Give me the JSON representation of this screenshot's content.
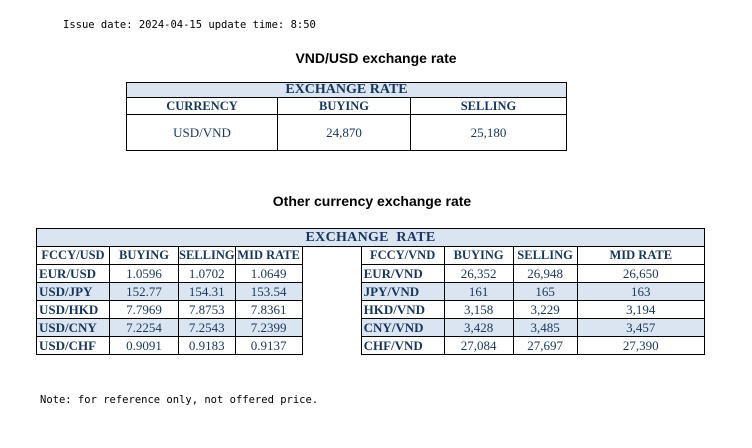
{
  "issue_line": "Issue date: 2024-04-15 update time: 8:50",
  "main_title": "VND/USD exchange rate",
  "vnd_table": {
    "title": "EXCHANGE RATE",
    "headers": [
      "CURRENCY",
      "BUYING",
      "SELLING"
    ],
    "row": {
      "currency": "USD/VND",
      "buying": "24,870",
      "selling": "25,180"
    }
  },
  "other_title": "Other currency exchange rate",
  "other_table": {
    "title": "EXCHANGE  RATE",
    "left_headers": [
      "FCCY/USD",
      "BUYING",
      "SELLING",
      "MID RATE"
    ],
    "right_headers": [
      "FCCY/VND",
      "BUYING",
      "SELLING",
      "MID RATE"
    ],
    "rows": [
      {
        "l_pair": "EUR/USD",
        "l_buy": "1.0596",
        "l_sell": "1.0702",
        "l_mid": "1.0649",
        "r_pair": "EUR/VND",
        "r_buy": "26,352",
        "r_sell": "26,948",
        "r_mid": "26,650"
      },
      {
        "l_pair": "USD/JPY",
        "l_buy": "152.77",
        "l_sell": "154.31",
        "l_mid": "153.54",
        "r_pair": "JPY/VND",
        "r_buy": "161",
        "r_sell": "165",
        "r_mid": "163"
      },
      {
        "l_pair": "USD/HKD",
        "l_buy": "7.7969",
        "l_sell": "7.8753",
        "l_mid": "7.8361",
        "r_pair": "HKD/VND",
        "r_buy": "3,158",
        "r_sell": "3,229",
        "r_mid": "3,194"
      },
      {
        "l_pair": "USD/CNY",
        "l_buy": "7.2254",
        "l_sell": "7.2543",
        "l_mid": "7.2399",
        "r_pair": "CNY/VND",
        "r_buy": "3,428",
        "r_sell": "3,485",
        "r_mid": "3,457"
      },
      {
        "l_pair": "USD/CHF",
        "l_buy": "0.9091",
        "l_sell": "0.9183",
        "l_mid": "0.9137",
        "r_pair": "CHF/VND",
        "r_buy": "27,084",
        "r_sell": "27,697",
        "r_mid": "27,390"
      }
    ]
  },
  "note": "Note: for reference only, not offered price.",
  "colors": {
    "header_text": "#17365d",
    "band": "#dbe5f1"
  }
}
